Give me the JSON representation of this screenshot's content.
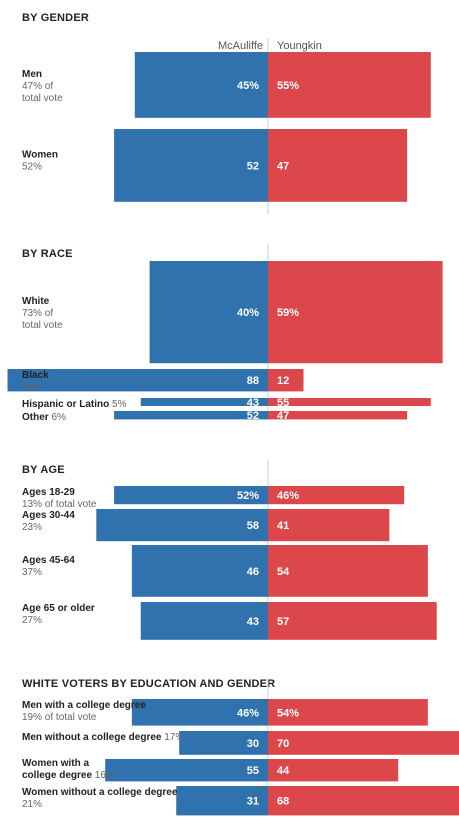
{
  "legend": {
    "left": "McAuliffe",
    "right": "Youngkin"
  },
  "colors": {
    "mcauliffe": "#2f72ad",
    "youngkin": "#dc474c",
    "axis": "#cccccc"
  },
  "chart_data": [
    {
      "type": "bar",
      "title": "BY GENDER",
      "series_names": [
        "McAuliffe",
        "Youngkin"
      ],
      "rows": [
        {
          "label": "Men",
          "sub": [
            "47% of",
            "total vote"
          ],
          "share": 47,
          "mcauliffe": 45,
          "youngkin": 55,
          "mc_text": "45%",
          "yk_text": "55%"
        },
        {
          "label": "Women",
          "sub": [
            "52%"
          ],
          "share": 52,
          "mcauliffe": 52,
          "youngkin": 47,
          "mc_text": "52",
          "yk_text": "47"
        }
      ]
    },
    {
      "type": "bar",
      "title": "BY RACE",
      "rows": [
        {
          "label": "White",
          "sub": [
            "73% of",
            "total vote"
          ],
          "share": 73,
          "mcauliffe": 40,
          "youngkin": 59,
          "mc_text": "40%",
          "yk_text": "59%"
        },
        {
          "label": "Black",
          "sub": [
            "16%"
          ],
          "share": 16,
          "mcauliffe": 88,
          "youngkin": 12,
          "mc_text": "88",
          "yk_text": "12"
        },
        {
          "label": "Hispanic or Latino",
          "inline_sub": "5%",
          "share": 5,
          "mcauliffe": 43,
          "youngkin": 55,
          "mc_text": "43",
          "yk_text": "55"
        },
        {
          "label": "Other",
          "inline_sub": "6%",
          "share": 6,
          "mcauliffe": 52,
          "youngkin": 47,
          "mc_text": "52",
          "yk_text": "47"
        }
      ]
    },
    {
      "type": "bar",
      "title": "BY AGE",
      "rows": [
        {
          "label": "Ages 18-29",
          "sub": [
            "13% of total vote"
          ],
          "share": 13,
          "mcauliffe": 52,
          "youngkin": 46,
          "mc_text": "52%",
          "yk_text": "46%"
        },
        {
          "label": "Ages 30-44",
          "sub": [
            "23%"
          ],
          "share": 23,
          "mcauliffe": 58,
          "youngkin": 41,
          "mc_text": "58",
          "yk_text": "41"
        },
        {
          "label": "Ages 45-64",
          "sub": [
            "37%"
          ],
          "share": 37,
          "mcauliffe": 46,
          "youngkin": 54,
          "mc_text": "46",
          "yk_text": "54"
        },
        {
          "label": "Age 65 or older",
          "sub": [
            "27%"
          ],
          "share": 27,
          "mcauliffe": 43,
          "youngkin": 57,
          "mc_text": "43",
          "yk_text": "57"
        }
      ]
    },
    {
      "type": "bar",
      "title": "WHITE VOTERS BY EDUCATION AND GENDER",
      "rows": [
        {
          "label": "Men with a college degree",
          "sub": [
            "19% of total vote"
          ],
          "share": 19,
          "mcauliffe": 46,
          "youngkin": 54,
          "mc_text": "46%",
          "yk_text": "54%"
        },
        {
          "label": "Men without a college degree",
          "inline_sub": "17%",
          "share": 17,
          "mcauliffe": 30,
          "youngkin": 70,
          "mc_text": "30",
          "yk_text": "70"
        },
        {
          "label": "Women with a",
          "label2": "college degree",
          "inline_sub2": "16%",
          "share": 16,
          "mcauliffe": 55,
          "youngkin": 44,
          "mc_text": "55",
          "yk_text": "44"
        },
        {
          "label": "Women without a college degree",
          "sub": [
            "21%"
          ],
          "share": 21,
          "mcauliffe": 31,
          "youngkin": 68,
          "mc_text": "31",
          "yk_text": "68"
        }
      ]
    }
  ]
}
